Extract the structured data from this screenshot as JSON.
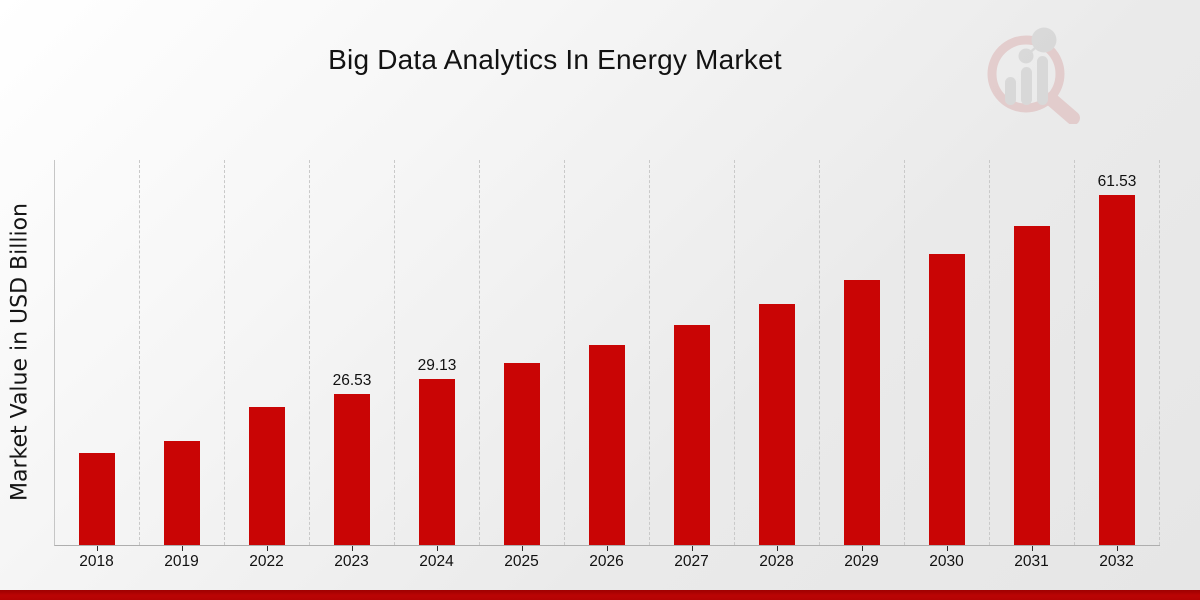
{
  "header": {
    "title": "Big Data Analytics In Energy Market"
  },
  "chart_data": {
    "type": "bar",
    "title": "Big Data Analytics In Energy Market",
    "xlabel": "",
    "ylabel": "Market Value in USD Billion",
    "categories": [
      "2018",
      "2019",
      "2022",
      "2023",
      "2024",
      "2025",
      "2026",
      "2027",
      "2028",
      "2029",
      "2030",
      "2031",
      "2032"
    ],
    "values": [
      16.2,
      18.3,
      24.2,
      26.53,
      29.13,
      31.98,
      35.11,
      38.55,
      42.32,
      46.47,
      51.02,
      56.01,
      61.53
    ],
    "value_labels": [
      "",
      "",
      "",
      "26.53",
      "29.13",
      "",
      "",
      "",
      "",
      "",
      "",
      "",
      "61.53"
    ],
    "ylim": [
      0,
      67.6
    ],
    "grid": "vertical-dashed",
    "legend": "none",
    "bar_color": "#c90505",
    "gridline_color": "#c9c9c9",
    "axis_color": "#aeaeae",
    "tick_color": "#2b2b2b"
  },
  "logo": {
    "name": "market-research-magnifier-watermark",
    "ring_color": "#d9a8a8",
    "glyph_color": "#c3c3c3"
  },
  "footer": {
    "accent_bar_color": "#b30303"
  }
}
